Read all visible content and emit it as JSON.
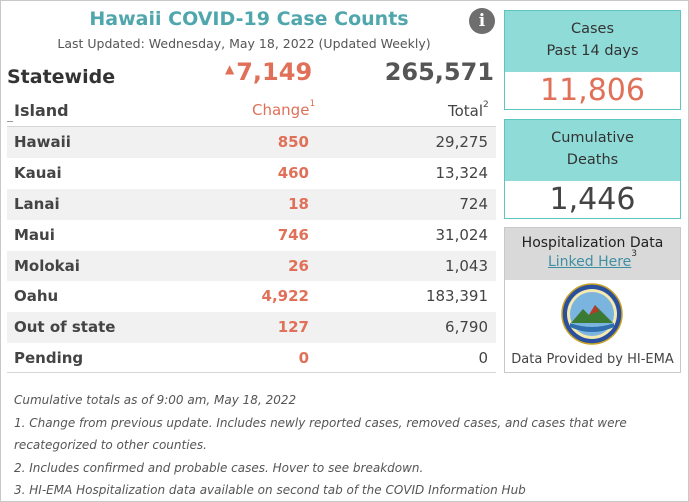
{
  "title": "Hawaii COVID-19 Case Counts",
  "last_updated": "Last Updated: Wednesday, May 18, 2022 (Updated Weekly)",
  "info_icon": "info-icon",
  "statewide": {
    "label": "Statewide",
    "change": "7,149",
    "total": "265,571"
  },
  "table": {
    "col_island": "Island",
    "col_change": "Change",
    "col_change_note": "1",
    "col_total": "Total",
    "col_total_note": "2",
    "rows": [
      {
        "island": "Hawaii",
        "change": "850",
        "total": "29,275"
      },
      {
        "island": "Kauai",
        "change": "460",
        "total": "13,324"
      },
      {
        "island": "Lanai",
        "change": "18",
        "total": "724"
      },
      {
        "island": "Maui",
        "change": "746",
        "total": "31,024"
      },
      {
        "island": "Molokai",
        "change": "26",
        "total": "1,043"
      },
      {
        "island": "Oahu",
        "change": "4,922",
        "total": "183,391"
      },
      {
        "island": "Out of state",
        "change": "127",
        "total": "6,790"
      },
      {
        "island": "Pending",
        "change": "0",
        "total": "0"
      }
    ]
  },
  "notes": [
    "Cumulative totals as of 9:00 am, May 18, 2022",
    "1. Change from previous update. Includes newly reported cases, removed cases, and cases that were",
    "recategorized to other counties.",
    "2. Includes confirmed and probable cases. Hover to see breakdown.",
    "3. HI-EMA Hospitalization data available on second tab of the COVID Information Hub"
  ],
  "cases_panel": {
    "line1": "Cases",
    "line2": "Past 14 days",
    "value": "11,806"
  },
  "deaths_panel": {
    "line1": "Cumulative",
    "line2": "Deaths",
    "value": "1,446"
  },
  "hosp_panel": {
    "title": "Hospitalization Data",
    "link": "Linked Here",
    "link_note": "3",
    "source": "Data Provided by HI-EMA",
    "logo_icon": "hi-ema-seal-icon"
  },
  "colors": {
    "title": "#4fa6ac",
    "change": "#e07058",
    "panel_head": "#8fdbd8",
    "panel_border": "#5cc5c2",
    "link": "#3f8fa3"
  }
}
